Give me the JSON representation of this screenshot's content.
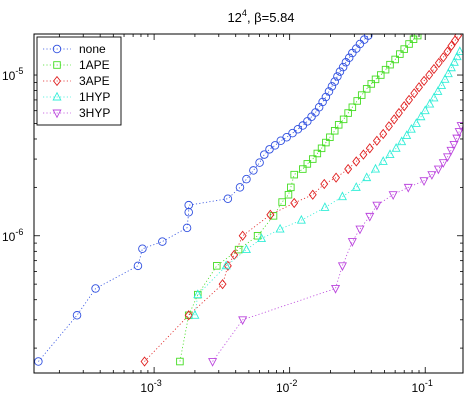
{
  "chart_data": {
    "type": "scatter",
    "title": "12^4, β=5.84",
    "title_base": "12",
    "title_sup": "4",
    "title_rest": ", β=5.84",
    "xscale": "log",
    "yscale": "log",
    "xlim": [
      0.00013,
      0.19
    ],
    "ylim": [
      1.4e-07,
      1.8e-05
    ],
    "x_ticks": [
      {
        "value": 0.001,
        "base": "10",
        "exp": "-3"
      },
      {
        "value": 0.01,
        "base": "10",
        "exp": "-2"
      },
      {
        "value": 0.1,
        "base": "10",
        "exp": "-1"
      }
    ],
    "y_ticks": [
      {
        "value": 1e-06,
        "base": "10",
        "exp": "-6"
      },
      {
        "value": 1e-05,
        "base": "10",
        "exp": "-5"
      }
    ],
    "grid": false,
    "legend_position": "top-left",
    "series": [
      {
        "name": "none",
        "color": "#3050e0",
        "marker": "circle",
        "points": [
          [
            0.00014,
            1.65e-07
          ],
          [
            0.00027,
            3.2e-07
          ],
          [
            0.00037,
            4.7e-07
          ],
          [
            0.00076,
            6.5e-07
          ],
          [
            0.00082,
            8.3e-07
          ],
          [
            0.00115,
            9.2e-07
          ],
          [
            0.00175,
            1.12e-06
          ],
          [
            0.0018,
            1.4e-06
          ],
          [
            0.0018,
            1.55e-06
          ],
          [
            0.0035,
            1.7e-06
          ],
          [
            0.0043,
            2e-06
          ],
          [
            0.0048,
            2.25e-06
          ],
          [
            0.0054,
            2.55e-06
          ],
          [
            0.006,
            2.85e-06
          ],
          [
            0.0065,
            3.2e-06
          ],
          [
            0.0071,
            3.45e-06
          ],
          [
            0.0078,
            3.65e-06
          ],
          [
            0.0086,
            3.9e-06
          ],
          [
            0.0095,
            4.1e-06
          ],
          [
            0.0105,
            4.35e-06
          ],
          [
            0.0115,
            4.6e-06
          ],
          [
            0.0125,
            4.85e-06
          ],
          [
            0.0135,
            5.15e-06
          ],
          [
            0.0145,
            5.5e-06
          ],
          [
            0.0155,
            5.85e-06
          ],
          [
            0.0165,
            6.3e-06
          ],
          [
            0.0175,
            6.8e-06
          ],
          [
            0.0185,
            7.3e-06
          ],
          [
            0.0195,
            7.9e-06
          ],
          [
            0.0205,
            8.5e-06
          ],
          [
            0.0215,
            9.1e-06
          ],
          [
            0.0225,
            9.8e-06
          ],
          [
            0.0235,
            1.05e-05
          ],
          [
            0.0248,
            1.12e-05
          ],
          [
            0.026,
            1.2e-05
          ],
          [
            0.0275,
            1.28e-05
          ],
          [
            0.029,
            1.37e-05
          ],
          [
            0.031,
            1.46e-05
          ],
          [
            0.033,
            1.56e-05
          ],
          [
            0.0355,
            1.66e-05
          ],
          [
            0.038,
            1.76e-05
          ]
        ]
      },
      {
        "name": "1APE",
        "color": "#44dd22",
        "marker": "square",
        "points": [
          [
            0.00155,
            1.65e-07
          ],
          [
            0.0018,
            3.2e-07
          ],
          [
            0.0021,
            4.3e-07
          ],
          [
            0.0029,
            6.5e-07
          ],
          [
            0.0042,
            8.2e-07
          ],
          [
            0.0058,
            1e-06
          ],
          [
            0.0076,
            1.33e-06
          ],
          [
            0.0088,
            1.62e-06
          ],
          [
            0.0098,
            1.8e-06
          ],
          [
            0.0102,
            2e-06
          ],
          [
            0.0108,
            2.4e-06
          ],
          [
            0.0125,
            2.6e-06
          ],
          [
            0.0135,
            2.8e-06
          ],
          [
            0.0148,
            3e-06
          ],
          [
            0.016,
            3.25e-06
          ],
          [
            0.0172,
            3.5e-06
          ],
          [
            0.0185,
            3.8e-06
          ],
          [
            0.0198,
            4.1e-06
          ],
          [
            0.0215,
            4.5e-06
          ],
          [
            0.023,
            4.9e-06
          ],
          [
            0.025,
            5.3e-06
          ],
          [
            0.027,
            5.8e-06
          ],
          [
            0.029,
            6.3e-06
          ],
          [
            0.0315,
            6.9e-06
          ],
          [
            0.034,
            7.5e-06
          ],
          [
            0.037,
            8.2e-06
          ],
          [
            0.04,
            8.8e-06
          ],
          [
            0.043,
            9.4e-06
          ],
          [
            0.047,
            1e-05
          ],
          [
            0.051,
            1.08e-05
          ],
          [
            0.055,
            1.16e-05
          ],
          [
            0.06,
            1.25e-05
          ],
          [
            0.065,
            1.35e-05
          ],
          [
            0.07,
            1.45e-05
          ],
          [
            0.076,
            1.56e-05
          ],
          [
            0.082,
            1.67e-05
          ],
          [
            0.088,
            1.76e-05
          ]
        ]
      },
      {
        "name": "3APE",
        "color": "#e02020",
        "marker": "diamond",
        "points": [
          [
            0.00085,
            1.65e-07
          ],
          [
            0.0018,
            3.2e-07
          ],
          [
            0.0032,
            5e-07
          ],
          [
            0.0035,
            6.5e-07
          ],
          [
            0.0039,
            7.6e-07
          ],
          [
            0.0045,
            1e-06
          ],
          [
            0.0072,
            1.35e-06
          ],
          [
            0.0108,
            1.6e-06
          ],
          [
            0.0148,
            1.8e-06
          ],
          [
            0.018,
            2.1e-06
          ],
          [
            0.022,
            2.3e-06
          ],
          [
            0.027,
            2.6e-06
          ],
          [
            0.031,
            2.9e-06
          ],
          [
            0.035,
            3.2e-06
          ],
          [
            0.039,
            3.5e-06
          ],
          [
            0.044,
            3.9e-06
          ],
          [
            0.049,
            4.3e-06
          ],
          [
            0.054,
            4.8e-06
          ],
          [
            0.059,
            5.3e-06
          ],
          [
            0.064,
            5.8e-06
          ],
          [
            0.07,
            6.4e-06
          ],
          [
            0.076,
            7e-06
          ],
          [
            0.083,
            7.7e-06
          ],
          [
            0.09,
            8.4e-06
          ],
          [
            0.098,
            9.2e-06
          ],
          [
            0.107,
            1e-05
          ],
          [
            0.116,
            1.09e-05
          ],
          [
            0.126,
            1.19e-05
          ],
          [
            0.136,
            1.29e-05
          ],
          [
            0.146,
            1.4e-05
          ],
          [
            0.156,
            1.52e-05
          ],
          [
            0.166,
            1.64e-05
          ],
          [
            0.175,
            1.76e-05
          ]
        ]
      },
      {
        "name": "1HYP",
        "color": "#33eed8",
        "marker": "triangle-up",
        "points": [
          [
            0.002,
            3.2e-07
          ],
          [
            0.0021,
            4.3e-07
          ],
          [
            0.0034,
            6.5e-07
          ],
          [
            0.0048,
            8.2e-07
          ],
          [
            0.0062,
            9.6e-07
          ],
          [
            0.0085,
            1.1e-06
          ],
          [
            0.0122,
            1.25e-06
          ],
          [
            0.0182,
            1.5e-06
          ],
          [
            0.0245,
            1.75e-06
          ],
          [
            0.031,
            2e-06
          ],
          [
            0.037,
            2.3e-06
          ],
          [
            0.043,
            2.6e-06
          ],
          [
            0.049,
            2.9e-06
          ],
          [
            0.055,
            3.2e-06
          ],
          [
            0.061,
            3.5e-06
          ],
          [
            0.067,
            3.85e-06
          ],
          [
            0.073,
            4.2e-06
          ],
          [
            0.079,
            4.6e-06
          ],
          [
            0.086,
            5e-06
          ],
          [
            0.093,
            5.5e-06
          ],
          [
            0.1,
            6e-06
          ],
          [
            0.108,
            6.6e-06
          ],
          [
            0.116,
            7.2e-06
          ],
          [
            0.124,
            7.9e-06
          ],
          [
            0.132,
            8.6e-06
          ],
          [
            0.14,
            9.4e-06
          ],
          [
            0.148,
            1.02e-05
          ],
          [
            0.156,
            1.11e-05
          ],
          [
            0.164,
            1.2e-05
          ],
          [
            0.172,
            1.3e-05
          ],
          [
            0.18,
            1.4e-05
          ]
        ]
      },
      {
        "name": "3HYP",
        "color": "#bb44dd",
        "marker": "triangle-down",
        "points": [
          [
            0.0027,
            1.65e-07
          ],
          [
            0.0045,
            3e-07
          ],
          [
            0.0218,
            4.7e-07
          ],
          [
            0.0245,
            6.5e-07
          ],
          [
            0.029,
            9.2e-07
          ],
          [
            0.033,
            1.1e-06
          ],
          [
            0.039,
            1.32e-06
          ],
          [
            0.044,
            1.55e-06
          ],
          [
            0.058,
            1.8e-06
          ],
          [
            0.075,
            2e-06
          ],
          [
            0.098,
            2.2e-06
          ],
          [
            0.112,
            2.4e-06
          ],
          [
            0.125,
            2.6e-06
          ],
          [
            0.136,
            2.85e-06
          ],
          [
            0.146,
            3.1e-06
          ],
          [
            0.155,
            3.4e-06
          ],
          [
            0.163,
            3.7e-06
          ],
          [
            0.171,
            4.05e-06
          ],
          [
            0.178,
            4.45e-06
          ],
          [
            0.184,
            4.85e-06
          ]
        ]
      }
    ]
  }
}
